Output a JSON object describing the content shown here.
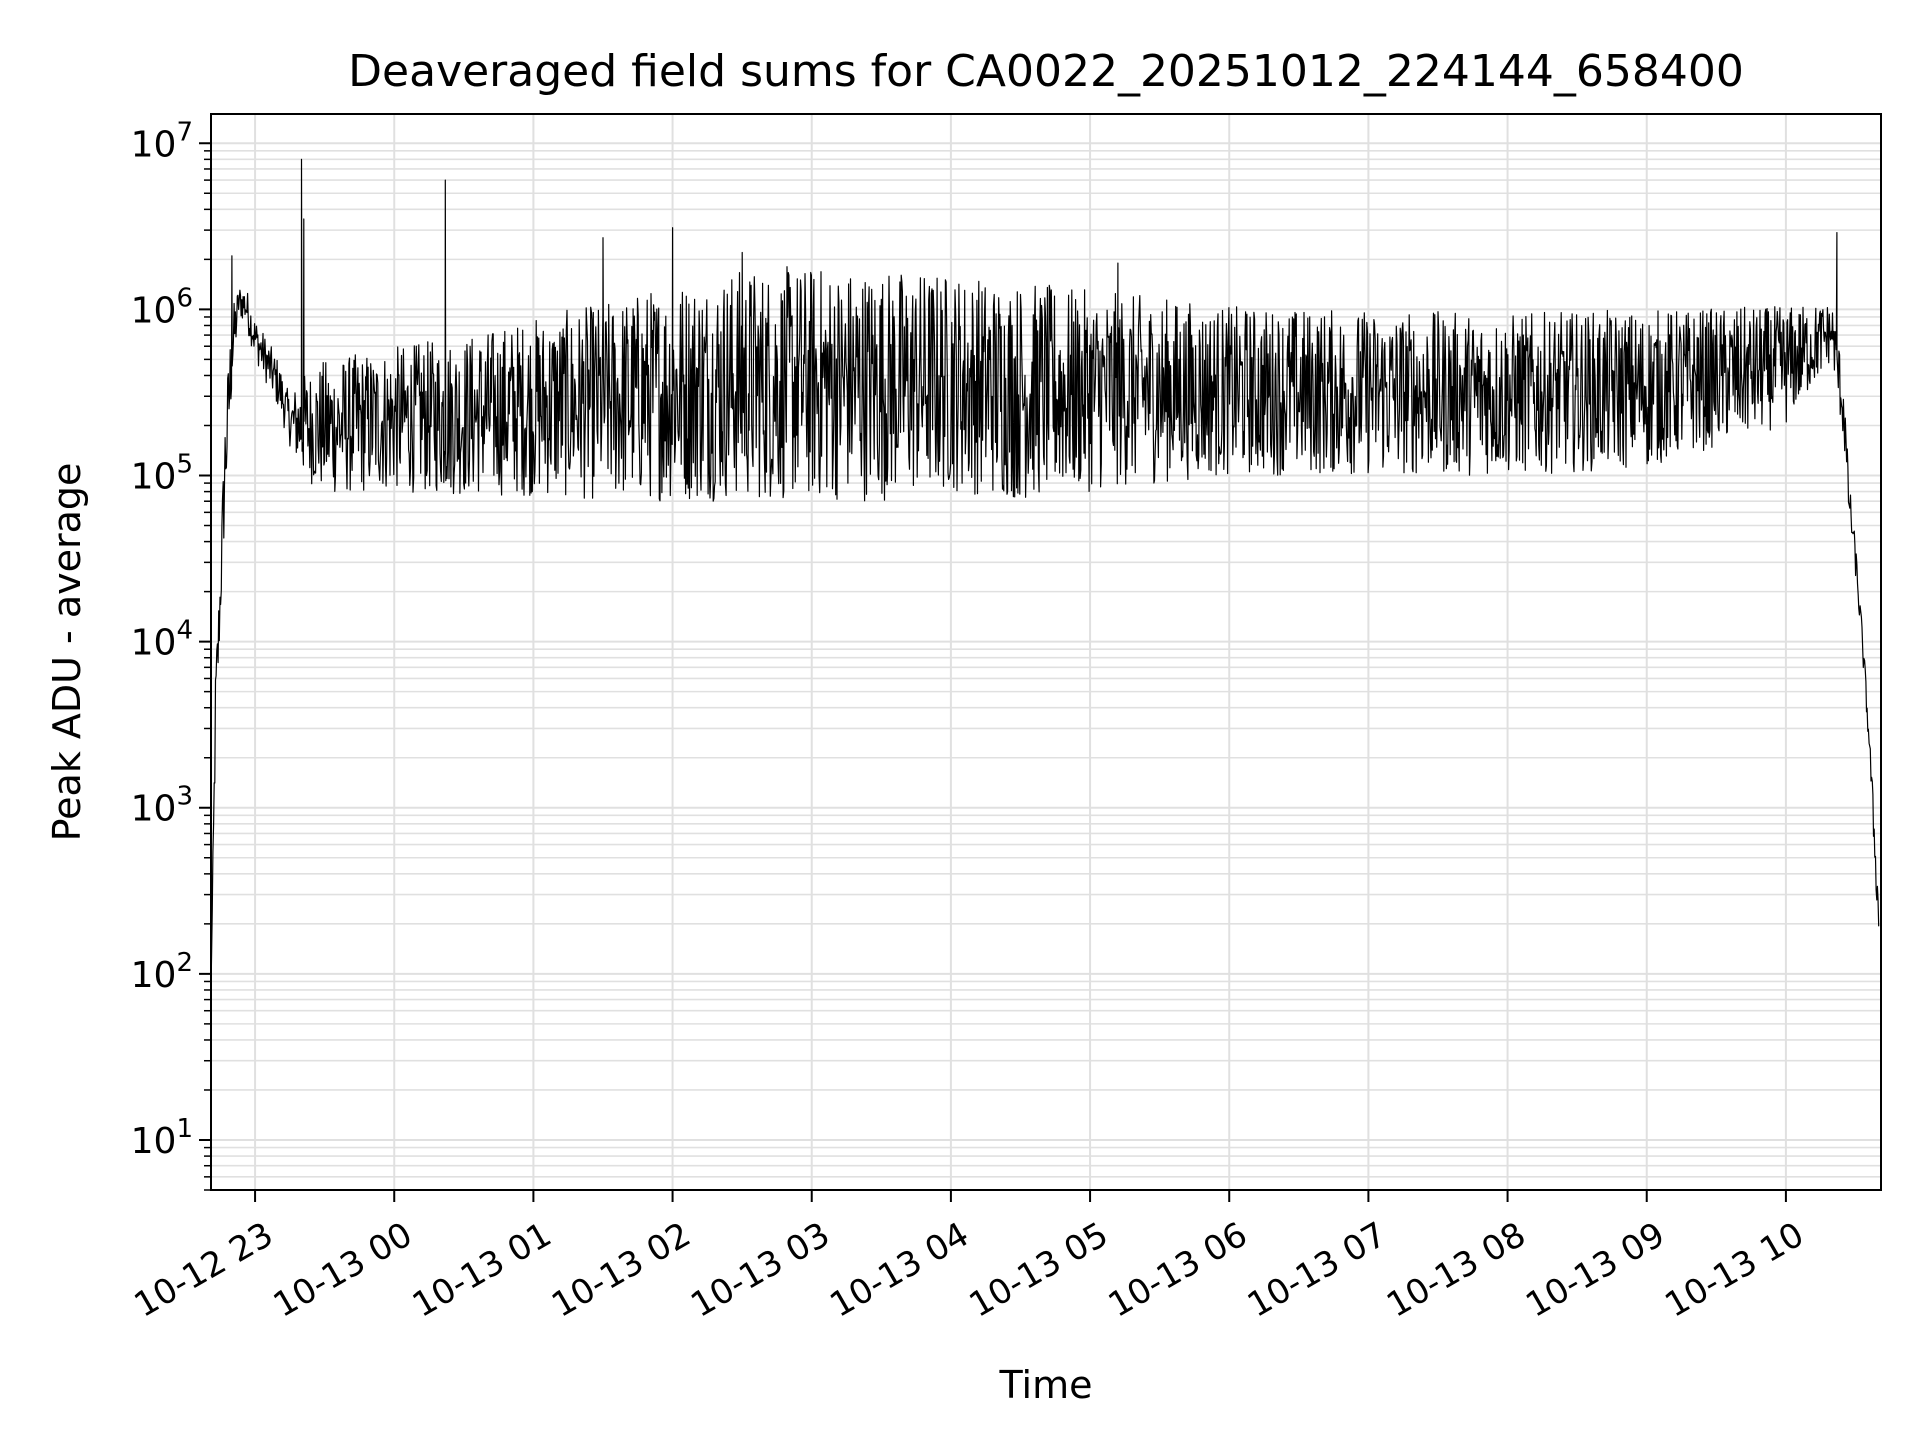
{
  "chart_data": {
    "type": "line",
    "title": "Deaveraged field sums for CA0022_20251012_224144_658400",
    "xlabel": "Time",
    "ylabel": "Peak ADU - average",
    "y_scale": "log",
    "ylim": [
      5,
      15000000
    ],
    "xlim": [
      "2025-10-12 22:41",
      "2025-10-13 10:41"
    ],
    "x_ticks": [
      {
        "t": "2025-10-12 23:00",
        "label": "10-12 23"
      },
      {
        "t": "2025-10-13 00:00",
        "label": "10-13 00"
      },
      {
        "t": "2025-10-13 01:00",
        "label": "10-13 01"
      },
      {
        "t": "2025-10-13 02:00",
        "label": "10-13 02"
      },
      {
        "t": "2025-10-13 03:00",
        "label": "10-13 03"
      },
      {
        "t": "2025-10-13 04:00",
        "label": "10-13 04"
      },
      {
        "t": "2025-10-13 05:00",
        "label": "10-13 05"
      },
      {
        "t": "2025-10-13 06:00",
        "label": "10-13 06"
      },
      {
        "t": "2025-10-13 07:00",
        "label": "10-13 07"
      },
      {
        "t": "2025-10-13 08:00",
        "label": "10-13 08"
      },
      {
        "t": "2025-10-13 09:00",
        "label": "10-13 09"
      },
      {
        "t": "2025-10-13 10:00",
        "label": "10-13 10"
      }
    ],
    "y_ticks": [
      {
        "value": 10,
        "base": "10",
        "exp": "1"
      },
      {
        "value": 100,
        "base": "10",
        "exp": "2"
      },
      {
        "value": 1000,
        "base": "10",
        "exp": "3"
      },
      {
        "value": 10000,
        "base": "10",
        "exp": "4"
      },
      {
        "value": 100000,
        "base": "10",
        "exp": "5"
      },
      {
        "value": 1000000,
        "base": "10",
        "exp": "6"
      },
      {
        "value": 10000000,
        "base": "10",
        "exp": "7"
      }
    ],
    "grid": true,
    "line_color": "#000000",
    "grid_color": "#e0e0e0",
    "series": [
      {
        "envelope": [
          {
            "t": "2025-10-12 22:41",
            "low": 80,
            "high": 80
          },
          {
            "t": "2025-10-12 22:43",
            "low": 2000,
            "high": 8000
          },
          {
            "t": "2025-10-12 22:45",
            "low": 12000,
            "high": 30000
          },
          {
            "t": "2025-10-12 22:47",
            "low": 50000,
            "high": 250000
          },
          {
            "t": "2025-10-12 22:50",
            "low": 300000,
            "high": 1000000
          },
          {
            "t": "2025-10-12 22:53",
            "low": 900000,
            "high": 1400000
          },
          {
            "t": "2025-10-12 22:56",
            "low": 800000,
            "high": 1400000
          },
          {
            "t": "2025-10-12 23:00",
            "low": 500000,
            "high": 900000
          },
          {
            "t": "2025-10-12 23:10",
            "low": 250000,
            "high": 500000
          },
          {
            "t": "2025-10-12 23:15",
            "low": 150000,
            "high": 300000
          },
          {
            "t": "2025-10-12 23:20",
            "low": 100000,
            "high": 400000
          },
          {
            "t": "2025-10-12 23:30",
            "low": 75000,
            "high": 500000
          },
          {
            "t": "2025-10-13 00:00",
            "low": 80000,
            "high": 600000
          },
          {
            "t": "2025-10-13 00:30",
            "low": 75000,
            "high": 700000
          },
          {
            "t": "2025-10-13 01:00",
            "low": 75000,
            "high": 900000
          },
          {
            "t": "2025-10-13 01:30",
            "low": 70000,
            "high": 1100000
          },
          {
            "t": "2025-10-13 02:00",
            "low": 70000,
            "high": 1500000
          },
          {
            "t": "2025-10-13 02:30",
            "low": 70000,
            "high": 1800000
          },
          {
            "t": "2025-10-13 03:00",
            "low": 70000,
            "high": 1850000
          },
          {
            "t": "2025-10-13 03:30",
            "low": 70000,
            "high": 1800000
          },
          {
            "t": "2025-10-13 04:00",
            "low": 80000,
            "high": 1700000
          },
          {
            "t": "2025-10-13 04:30",
            "low": 70000,
            "high": 1500000
          },
          {
            "t": "2025-10-13 05:00",
            "low": 80000,
            "high": 1300000
          },
          {
            "t": "2025-10-13 05:30",
            "low": 90000,
            "high": 1200000
          },
          {
            "t": "2025-10-13 06:00",
            "low": 100000,
            "high": 1050000
          },
          {
            "t": "2025-10-13 07:00",
            "low": 100000,
            "high": 1000000
          },
          {
            "t": "2025-10-13 08:00",
            "low": 100000,
            "high": 950000
          },
          {
            "t": "2025-10-13 09:00",
            "low": 110000,
            "high": 1000000
          },
          {
            "t": "2025-10-13 10:00",
            "low": 200000,
            "high": 1050000
          },
          {
            "t": "2025-10-13 10:20",
            "low": 500000,
            "high": 1100000
          },
          {
            "t": "2025-10-13 10:25",
            "low": 150000,
            "high": 400000
          },
          {
            "t": "2025-10-13 10:27",
            "low": 60000,
            "high": 100000
          },
          {
            "t": "2025-10-13 10:30",
            "low": 25000,
            "high": 40000
          },
          {
            "t": "2025-10-13 10:33",
            "low": 8000,
            "high": 12000
          },
          {
            "t": "2025-10-13 10:36",
            "low": 2000,
            "high": 3000
          },
          {
            "t": "2025-10-13 10:40",
            "low": 150,
            "high": 300
          }
        ],
        "spikes": [
          {
            "t": "2025-10-12 22:50",
            "value": 2100000
          },
          {
            "t": "2025-10-12 23:20",
            "value": 8000000
          },
          {
            "t": "2025-10-12 23:21",
            "value": 3500000
          },
          {
            "t": "2025-10-13 00:22",
            "value": 6000000
          },
          {
            "t": "2025-10-13 01:30",
            "value": 2700000
          },
          {
            "t": "2025-10-13 02:00",
            "value": 3100000
          },
          {
            "t": "2025-10-13 02:30",
            "value": 2200000
          },
          {
            "t": "2025-10-13 05:12",
            "value": 1900000
          },
          {
            "t": "2025-10-13 10:22",
            "value": 2900000
          }
        ]
      }
    ]
  }
}
